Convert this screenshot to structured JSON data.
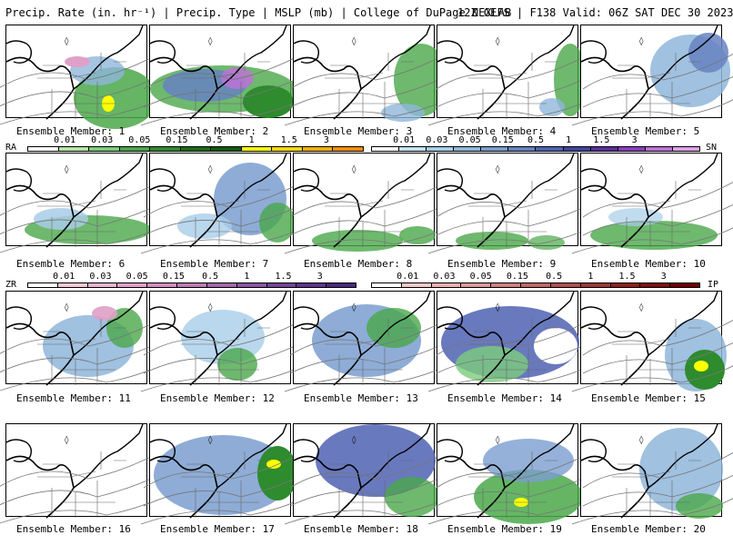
{
  "header": {
    "left": "Precip. Rate (in. hr⁻¹) | Precip. Type | MSLP (mb) | College of DuPage NEXLAB",
    "right": "12Z GEFS | F138 Valid: 06Z SAT DEC 30 2023"
  },
  "panels": [
    {
      "label": "Ensemble Member: 1"
    },
    {
      "label": "Ensemble Member: 2"
    },
    {
      "label": "Ensemble Member: 3"
    },
    {
      "label": "Ensemble Member: 4"
    },
    {
      "label": "Ensemble Member: 5"
    },
    {
      "label": "Ensemble Member: 6"
    },
    {
      "label": "Ensemble Member: 7"
    },
    {
      "label": "Ensemble Member: 8"
    },
    {
      "label": "Ensemble Member: 9"
    },
    {
      "label": "Ensemble Member: 10"
    },
    {
      "label": "Ensemble Member: 11"
    },
    {
      "label": "Ensemble Member: 12"
    },
    {
      "label": "Ensemble Member: 13"
    },
    {
      "label": "Ensemble Member: 14"
    },
    {
      "label": "Ensemble Member: 15"
    },
    {
      "label": "Ensemble Member: 16"
    },
    {
      "label": "Ensemble Member: 17"
    },
    {
      "label": "Ensemble Member: 18"
    },
    {
      "label": "Ensemble Member: 19"
    },
    {
      "label": "Ensemble Member: 20"
    }
  ],
  "legends": {
    "rain": {
      "tag": "RA",
      "ticks": [
        "0.01",
        "0.03",
        "0.05",
        "0.15",
        "0.5",
        "1",
        "1.5",
        "3"
      ],
      "colors": [
        "#ffffff",
        "#b6e3a8",
        "#7ccd7c",
        "#4aa84a",
        "#2e8b2e",
        "#1a6b1a",
        "#0f5a0f",
        "#ffff00",
        "#ffd700",
        "#ffb000",
        "#ff8c00"
      ]
    },
    "snow": {
      "tag": "SN",
      "ticks": [
        "0.01",
        "0.03",
        "0.05",
        "0.15",
        "0.5",
        "1",
        "1.5",
        "3"
      ],
      "colors": [
        "#ffffff",
        "#c6e2f5",
        "#a8cde8",
        "#8fb6db",
        "#7a9dcf",
        "#6682c2",
        "#4f62b3",
        "#3f45a0",
        "#5a2ea0",
        "#8a3fc0",
        "#c070d8",
        "#e0a0e8"
      ]
    },
    "freezing_rain": {
      "tag": "ZR",
      "ticks": [
        "0.01",
        "0.03",
        "0.05",
        "0.15",
        "0.5",
        "1",
        "1.5",
        "3"
      ],
      "colors": [
        "#ffffff",
        "#f7c8d8",
        "#eeb4cf",
        "#e0a0c8",
        "#cf8ec0",
        "#bb7ab8",
        "#a468ad",
        "#8c56a3",
        "#744598",
        "#5e368c",
        "#4a2a80"
      ]
    },
    "ice_pellets": {
      "tag": "IP",
      "ticks": [
        "0.01",
        "0.03",
        "0.05",
        "0.15",
        "0.5",
        "1",
        "1.5",
        "3"
      ],
      "colors": [
        "#ffffff",
        "#f7c8c8",
        "#eeb0b0",
        "#e09898",
        "#d08080",
        "#c06868",
        "#b05050",
        "#a03838",
        "#902020",
        "#801010",
        "#700000"
      ]
    }
  }
}
